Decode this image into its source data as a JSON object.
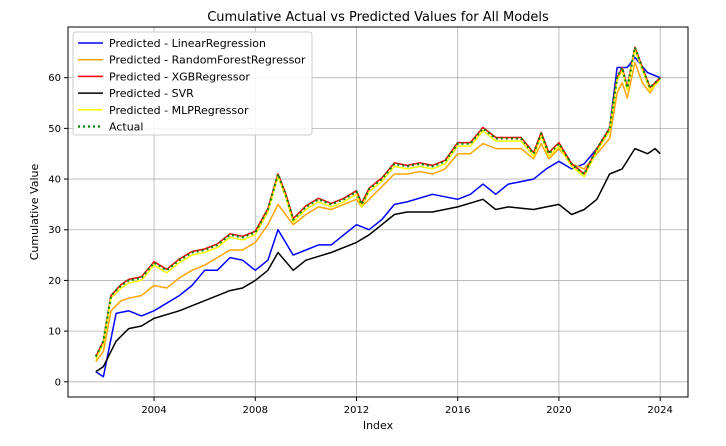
{
  "chart_data": {
    "type": "line",
    "title": "Cumulative Actual vs Predicted Values for All Models",
    "xlabel": "Index",
    "ylabel": "Cumulative Value",
    "xlim": [
      2000.6,
      2025.1
    ],
    "ylim": [
      -3,
      70
    ],
    "xticks": [
      2004,
      2008,
      2012,
      2016,
      2020,
      2024
    ],
    "yticks": [
      0,
      10,
      20,
      30,
      40,
      50,
      60
    ],
    "grid": true,
    "legend_placement": "upper-left",
    "series": [
      {
        "name": "Predicted - LinearRegression",
        "color": "#0000ff",
        "style": "solid",
        "x": [
          2001.7,
          2002.0,
          2002.5,
          2003,
          2003.5,
          2004,
          2005,
          2005.5,
          2006,
          2006.5,
          2007,
          2007.5,
          2008,
          2008.5,
          2008.9,
          2009.5,
          2010,
          2010.5,
          2011,
          2012,
          2012.5,
          2013,
          2013.5,
          2014,
          2015,
          2016,
          2016.5,
          2017,
          2017.5,
          2018,
          2019,
          2019.5,
          2020,
          2020.5,
          2021,
          2021.5,
          2022,
          2022.3,
          2022.7,
          2023,
          2023.5,
          2024
        ],
        "y": [
          2,
          1,
          13.5,
          14,
          13,
          14,
          17,
          19,
          22,
          22,
          24.5,
          24,
          22,
          24,
          30,
          25,
          26,
          27,
          27,
          31,
          30,
          32,
          35,
          35.5,
          37,
          36,
          37,
          39,
          37,
          39,
          40,
          42,
          43.5,
          42,
          43,
          46,
          50,
          62,
          62,
          64,
          61,
          60
        ]
      },
      {
        "name": "Predicted - RandomForestRegressor",
        "color": "#ffa500",
        "style": "solid",
        "x": [
          2001.7,
          2002,
          2002.3,
          2002.7,
          2003,
          2003.5,
          2004,
          2004.5,
          2005,
          2005.5,
          2006,
          2006.5,
          2007,
          2007.5,
          2008,
          2008.5,
          2008.9,
          2009.2,
          2009.5,
          2010,
          2010.5,
          2011,
          2011.5,
          2012,
          2012.2,
          2012.5,
          2013,
          2013.5,
          2014,
          2014.5,
          2015,
          2015.5,
          2016,
          2016.5,
          2017,
          2017.5,
          2018,
          2018.5,
          2019,
          2019.3,
          2019.6,
          2020,
          2020.5,
          2021,
          2021.5,
          2022,
          2022.3,
          2022.5,
          2022.7,
          2023,
          2023.3,
          2023.6,
          2024
        ],
        "y": [
          4,
          6,
          14,
          16,
          16.5,
          17,
          19,
          18.5,
          20.5,
          22,
          23,
          24.5,
          26,
          26,
          27.5,
          31,
          35,
          33,
          31,
          33,
          34.5,
          34,
          35,
          36,
          34.5,
          36,
          38.5,
          41,
          41,
          41.5,
          41,
          42,
          45,
          45,
          47,
          46,
          46,
          46,
          44,
          47,
          44,
          46,
          43,
          42,
          45,
          48,
          57,
          59,
          56,
          63,
          59,
          57,
          60
        ]
      },
      {
        "name": "Predicted - XGBRegressor",
        "color": "#ff0000",
        "style": "solid",
        "x": [
          2001.7,
          2002,
          2002.3,
          2002.7,
          2003,
          2003.5,
          2004,
          2004.5,
          2005,
          2005.5,
          2006,
          2006.5,
          2007,
          2007.5,
          2008,
          2008.5,
          2008.9,
          2009.2,
          2009.5,
          2010,
          2010.5,
          2011,
          2011.5,
          2012,
          2012.2,
          2012.5,
          2013,
          2013.5,
          2014,
          2014.5,
          2015,
          2015.5,
          2016,
          2016.5,
          2017,
          2017.5,
          2018,
          2018.5,
          2019,
          2019.3,
          2019.6,
          2020,
          2020.5,
          2021,
          2021.5,
          2022,
          2022.3,
          2022.5,
          2022.7,
          2023,
          2023.3,
          2023.6,
          2024
        ],
        "y": [
          5,
          8,
          17,
          19.2,
          20.2,
          20.7,
          23.7,
          22.2,
          24.2,
          25.7,
          26.2,
          27.2,
          29.2,
          28.7,
          29.7,
          34.2,
          41,
          37.2,
          32.2,
          34.7,
          36.2,
          35.2,
          36.2,
          37.7,
          35.2,
          38.2,
          40.2,
          43.2,
          42.7,
          43.2,
          42.7,
          43.7,
          47.2,
          47.2,
          50.2,
          48.2,
          48.2,
          48.2,
          45.2,
          49.2,
          45.2,
          47.2,
          43,
          41,
          46,
          50,
          60,
          62,
          58,
          66,
          62,
          58,
          60
        ]
      },
      {
        "name": "Predicted - SVR",
        "color": "#000000",
        "style": "solid",
        "x": [
          2001.7,
          2002,
          2002.5,
          2003,
          2003.5,
          2004,
          2005,
          2006,
          2007,
          2007.5,
          2008,
          2008.5,
          2008.9,
          2009.5,
          2010,
          2011,
          2012,
          2012.5,
          2013,
          2013.5,
          2014,
          2015,
          2016,
          2017,
          2017.5,
          2018,
          2019,
          2019.5,
          2020,
          2020.5,
          2021,
          2021.5,
          2022,
          2022.5,
          2023,
          2023.5,
          2023.8,
          2024
        ],
        "y": [
          2,
          3,
          8,
          10.5,
          11,
          12.5,
          14,
          16,
          18,
          18.5,
          20,
          22,
          25.5,
          22,
          24,
          25.5,
          27.5,
          29,
          31,
          33,
          33.5,
          33.5,
          34.5,
          36,
          34,
          34.5,
          34,
          34.5,
          35,
          33,
          34,
          36,
          41,
          42,
          46,
          45,
          46,
          45
        ]
      },
      {
        "name": "Predicted - MLPRegressor",
        "color": "#ffff00",
        "style": "solid",
        "x": [
          2001.7,
          2002,
          2002.3,
          2002.7,
          2003,
          2003.5,
          2004,
          2004.5,
          2005,
          2005.5,
          2006,
          2006.5,
          2007,
          2007.5,
          2008,
          2008.5,
          2008.9,
          2009.2,
          2009.5,
          2010,
          2010.5,
          2011,
          2011.5,
          2012,
          2012.2,
          2012.5,
          2013,
          2013.5,
          2014,
          2014.5,
          2015,
          2015.5,
          2016,
          2016.5,
          2017,
          2017.5,
          2018,
          2018.5,
          2019,
          2019.3,
          2019.6,
          2020,
          2020.5,
          2021,
          2021.5,
          2022,
          2022.3,
          2022.5,
          2022.7,
          2023,
          2023.3,
          2023.6,
          2024
        ],
        "y": [
          4.5,
          7.5,
          16.5,
          18.5,
          19.5,
          20,
          23,
          21.5,
          23.5,
          25,
          25.5,
          26.5,
          28.5,
          28,
          29,
          33.5,
          40.5,
          36.5,
          31.5,
          34,
          35.5,
          34.5,
          35.5,
          37,
          34.5,
          37.5,
          39.5,
          42.5,
          42,
          42.5,
          42,
          43,
          46.5,
          46.5,
          49.5,
          47.5,
          47.5,
          47.5,
          44.5,
          48.5,
          44.5,
          46.5,
          42.5,
          40.5,
          45.5,
          49.5,
          59.5,
          61.5,
          57.5,
          65.5,
          61.5,
          57.5,
          59.5
        ]
      },
      {
        "name": "Actual",
        "color": "#008000",
        "style": "dotted",
        "x": [
          2001.7,
          2002,
          2002.3,
          2002.7,
          2003,
          2003.5,
          2004,
          2004.5,
          2005,
          2005.5,
          2006,
          2006.5,
          2007,
          2007.5,
          2008,
          2008.5,
          2008.9,
          2009.2,
          2009.5,
          2010,
          2010.5,
          2011,
          2011.5,
          2012,
          2012.2,
          2012.5,
          2013,
          2013.5,
          2014,
          2014.5,
          2015,
          2015.5,
          2016,
          2016.5,
          2017,
          2017.5,
          2018,
          2018.5,
          2019,
          2019.3,
          2019.6,
          2020,
          2020.5,
          2021,
          2021.5,
          2022,
          2022.3,
          2022.5,
          2022.7,
          2023,
          2023.3,
          2023.6,
          2024
        ],
        "y": [
          5,
          8,
          17,
          19,
          20,
          20.5,
          23.5,
          22,
          24,
          25.5,
          26,
          27,
          29,
          28.5,
          29.5,
          34,
          41,
          37,
          32,
          34.5,
          36,
          35,
          36,
          37.5,
          35,
          38,
          40,
          43,
          42.5,
          43,
          42.5,
          43.5,
          47,
          47,
          50,
          48,
          48,
          48,
          45,
          49,
          45,
          47,
          43,
          41,
          46,
          50,
          60,
          62,
          58,
          66,
          62,
          58,
          60
        ]
      }
    ]
  }
}
